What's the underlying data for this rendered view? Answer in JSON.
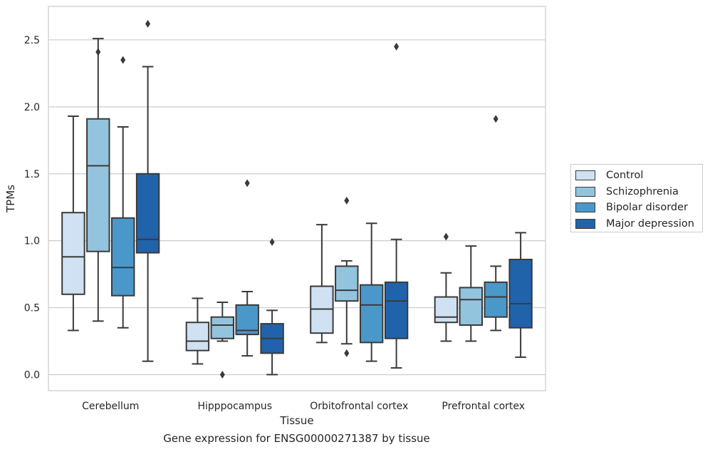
{
  "chart_data": {
    "type": "box",
    "caption": "Gene expression for ENSG00000271387 by tissue",
    "xlabel": "Tissue",
    "ylabel": "TPMs",
    "ylim": [
      -0.12,
      2.75
    ],
    "yticks": [
      0.0,
      0.5,
      1.0,
      1.5,
      2.0,
      2.5
    ],
    "grid": "horizontal",
    "legend_position": "right",
    "categories": [
      "Cerebellum",
      "Hipppocampus",
      "Orbitofrontal cortex",
      "Prefrontal cortex"
    ],
    "series": [
      {
        "name": "Control",
        "color": "#cfe1f2",
        "boxes": [
          {
            "whislo": 0.33,
            "q1": 0.6,
            "med": 0.88,
            "q3": 1.21,
            "whishi": 1.93,
            "fliers": []
          },
          {
            "whislo": 0.08,
            "q1": 0.18,
            "med": 0.25,
            "q3": 0.39,
            "whishi": 0.57,
            "fliers": []
          },
          {
            "whislo": 0.24,
            "q1": 0.31,
            "med": 0.49,
            "q3": 0.66,
            "whishi": 1.12,
            "fliers": []
          },
          {
            "whislo": 0.25,
            "q1": 0.39,
            "med": 0.43,
            "q3": 0.58,
            "whishi": 0.76,
            "fliers": [
              1.03
            ]
          }
        ]
      },
      {
        "name": "Schizophrenia",
        "color": "#93c4de",
        "boxes": [
          {
            "whislo": 0.4,
            "q1": 0.92,
            "med": 1.56,
            "q3": 1.91,
            "whishi": 2.51,
            "fliers": [
              2.41
            ]
          },
          {
            "whislo": 0.25,
            "q1": 0.27,
            "med": 0.37,
            "q3": 0.43,
            "whishi": 0.54,
            "fliers": [
              0.0
            ]
          },
          {
            "whislo": 0.23,
            "q1": 0.55,
            "med": 0.63,
            "q3": 0.81,
            "whishi": 0.85,
            "fliers": [
              1.3,
              0.16
            ]
          },
          {
            "whislo": 0.25,
            "q1": 0.37,
            "med": 0.56,
            "q3": 0.65,
            "whishi": 0.96,
            "fliers": []
          }
        ]
      },
      {
        "name": "Bipolar disorder",
        "color": "#4a98c9",
        "boxes": [
          {
            "whislo": 0.35,
            "q1": 0.59,
            "med": 0.8,
            "q3": 1.17,
            "whishi": 1.85,
            "fliers": [
              2.35
            ]
          },
          {
            "whislo": 0.14,
            "q1": 0.3,
            "med": 0.33,
            "q3": 0.52,
            "whishi": 0.62,
            "fliers": [
              1.43
            ]
          },
          {
            "whislo": 0.1,
            "q1": 0.24,
            "med": 0.52,
            "q3": 0.67,
            "whishi": 1.13,
            "fliers": []
          },
          {
            "whislo": 0.33,
            "q1": 0.43,
            "med": 0.58,
            "q3": 0.69,
            "whishi": 0.81,
            "fliers": [
              1.91
            ]
          }
        ]
      },
      {
        "name": "Major depression",
        "color": "#2163aa",
        "boxes": [
          {
            "whislo": 0.1,
            "q1": 0.91,
            "med": 1.01,
            "q3": 1.5,
            "whishi": 2.3,
            "fliers": [
              2.62
            ]
          },
          {
            "whislo": 0.0,
            "q1": 0.16,
            "med": 0.27,
            "q3": 0.38,
            "whishi": 0.48,
            "fliers": [
              0.99
            ]
          },
          {
            "whislo": 0.05,
            "q1": 0.27,
            "med": 0.55,
            "q3": 0.69,
            "whishi": 1.01,
            "fliers": [
              2.45
            ]
          },
          {
            "whislo": 0.13,
            "q1": 0.35,
            "med": 0.53,
            "q3": 0.86,
            "whishi": 1.06,
            "fliers": []
          }
        ]
      }
    ]
  }
}
